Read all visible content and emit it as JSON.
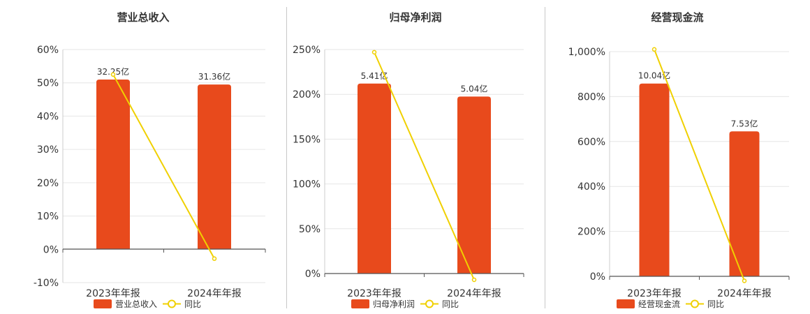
{
  "chart_data": [
    {
      "type": "bar",
      "title": "营业总收入",
      "categories": [
        "2023年年报",
        "2024年年报"
      ],
      "series": [
        {
          "name": "营业总收入",
          "kind": "bar",
          "axis": "value-label",
          "values": [
            32.25,
            31.36
          ],
          "labels": [
            "32.25亿",
            "31.36亿"
          ]
        },
        {
          "name": "同比",
          "kind": "line",
          "values": [
            52.5,
            -2.8
          ]
        }
      ],
      "y_ticks": [
        "60%",
        "50%",
        "40%",
        "30%",
        "20%",
        "10%",
        "0%",
        "-10%"
      ],
      "ylim": [
        -10,
        60
      ],
      "bar_heights_pct": [
        51,
        49.5
      ],
      "grid": true,
      "legend": "bottom-center"
    },
    {
      "type": "bar",
      "title": "归母净利润",
      "categories": [
        "2023年年报",
        "2024年年报"
      ],
      "series": [
        {
          "name": "归母净利润",
          "kind": "bar",
          "values": [
            5.41,
            5.04
          ],
          "labels": [
            "5.41亿",
            "5.04亿"
          ]
        },
        {
          "name": "同比",
          "kind": "line",
          "values": [
            247,
            -7
          ]
        }
      ],
      "y_ticks": [
        "250%",
        "200%",
        "150%",
        "100%",
        "50%",
        "0%"
      ],
      "ylim": [
        -10,
        250
      ],
      "bar_heights_pct": [
        212,
        197.5
      ],
      "grid": true,
      "legend": "bottom-center"
    },
    {
      "type": "bar",
      "title": "经营现金流",
      "categories": [
        "2023年年报",
        "2024年年报"
      ],
      "series": [
        {
          "name": "经营现金流",
          "kind": "bar",
          "values": [
            10.04,
            7.53
          ],
          "labels": [
            "10.04亿",
            "7.53亿"
          ]
        },
        {
          "name": "同比",
          "kind": "line",
          "values": [
            1010,
            -20
          ]
        }
      ],
      "y_ticks": [
        "1,000%",
        "800%",
        "600%",
        "400%",
        "200%",
        "0%"
      ],
      "ylim": [
        -10,
        1010
      ],
      "bar_heights_pct": [
        858,
        645
      ],
      "grid": true,
      "legend": "bottom-center"
    }
  ],
  "colors": {
    "bar": "#e84a1c",
    "line": "#f0d000",
    "grid": "#e6e6e6",
    "axis": "#555555"
  }
}
